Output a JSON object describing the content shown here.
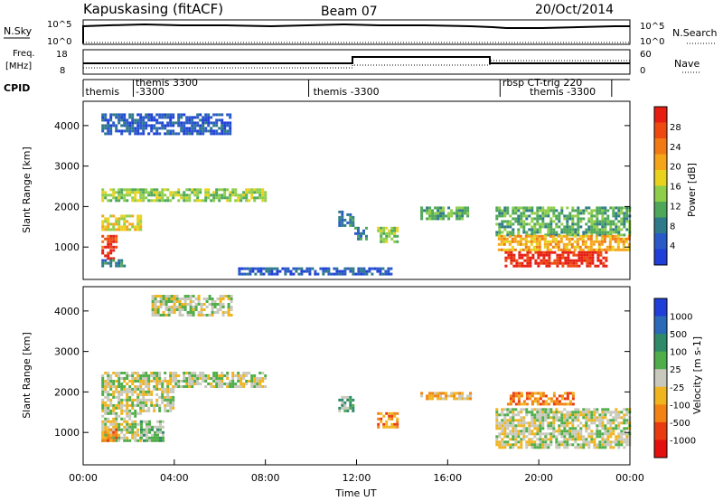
{
  "header": {
    "station": "Kapuskasing (fitACF)",
    "beam": "Beam 07",
    "date": "20/Oct/2014"
  },
  "nsky_panel": {
    "label": "N.Sky",
    "tick_top": "10^5",
    "tick_bottom": "10^0",
    "right_label": "N.Search",
    "right_tick_top": "10^5",
    "right_tick_bottom": "10^0"
  },
  "freq_panel": {
    "label_line1": "Freq.",
    "label_line2": "[MHz]",
    "tick_top": "18",
    "tick_bottom": "8",
    "right_label": "Nave",
    "right_tick_top": "60",
    "right_tick_bottom": "0"
  },
  "cpid_panel": {
    "label": "CPID",
    "entries": [
      {
        "text": "themis",
        "x_hour": 0.1,
        "row": 1
      },
      {
        "text": "themis 3300",
        "x_hour": 2.3,
        "row": 0
      },
      {
        "text": "-3300",
        "x_hour": 2.3,
        "row": 1
      },
      {
        "text": "themis -3300",
        "x_hour": 10.1,
        "row": 1
      },
      {
        "text": "rbsp CT-trig 220",
        "x_hour": 18.4,
        "row": 0
      },
      {
        "text": "themis -3300",
        "x_hour": 19.6,
        "row": 1
      }
    ],
    "boundaries_hours": [
      2.2,
      9.9,
      18.3,
      23.2
    ]
  },
  "chart_data": [
    {
      "type": "heatmap",
      "name": "power",
      "ylabel": "Slant Range [km]",
      "ylim": [
        200,
        4600
      ],
      "yticks": [
        "1000",
        "2000",
        "3000",
        "4000"
      ],
      "colorbar_label": "Power [dB]",
      "colorbar_ticks": [
        "4",
        "8",
        "12",
        "16",
        "20",
        "24",
        "28"
      ],
      "colorbar_colors": [
        "#1f3fd8",
        "#2a5ac8",
        "#2f7a8a",
        "#4fa85a",
        "#8fce4a",
        "#e8d21e",
        "#f5a51a",
        "#f27a14",
        "#ee4a10",
        "#e61e12"
      ],
      "regions": [
        {
          "x0": 0.8,
          "x1": 8.0,
          "y0": 2150,
          "y1": 2450,
          "level": 4
        },
        {
          "x0": 0.8,
          "x1": 6.5,
          "y0": 3800,
          "y1": 4300,
          "level": 1
        },
        {
          "x0": 0.8,
          "x1": 2.5,
          "y0": 1400,
          "y1": 1800,
          "level": 5
        },
        {
          "x0": 0.8,
          "x1": 1.5,
          "y0": 1000,
          "y1": 1300,
          "level": 8
        },
        {
          "x0": 0.8,
          "x1": 1.3,
          "y0": 700,
          "y1": 950,
          "level": 9
        },
        {
          "x0": 0.8,
          "x1": 1.8,
          "y0": 500,
          "y1": 700,
          "level": 2
        },
        {
          "x0": 6.8,
          "x1": 13.5,
          "y0": 300,
          "y1": 500,
          "level": 1
        },
        {
          "x0": 11.2,
          "x1": 11.8,
          "y0": 1500,
          "y1": 1900,
          "level": 2
        },
        {
          "x0": 11.9,
          "x1": 12.4,
          "y0": 1200,
          "y1": 1500,
          "level": 2
        },
        {
          "x0": 12.9,
          "x1": 13.8,
          "y0": 1100,
          "y1": 1500,
          "level": 4
        },
        {
          "x0": 14.8,
          "x1": 17.0,
          "y0": 1700,
          "y1": 2000,
          "level": 3
        },
        {
          "x0": 18.1,
          "x1": 24.0,
          "y0": 1300,
          "y1": 2000,
          "level": 3
        },
        {
          "x0": 18.2,
          "x1": 24.0,
          "y0": 900,
          "y1": 1300,
          "level": 6
        },
        {
          "x0": 18.5,
          "x1": 23.0,
          "y0": 500,
          "y1": 900,
          "level": 9
        }
      ]
    },
    {
      "type": "heatmap",
      "name": "velocity",
      "ylabel": "Slant Range [km]",
      "xlabel": "Time UT",
      "ylim": [
        200,
        4600
      ],
      "xlim": [
        0,
        24
      ],
      "yticks": [
        "1000",
        "2000",
        "3000",
        "4000"
      ],
      "xticks": [
        "00:00",
        "04:00",
        "08:00",
        "12:00",
        "16:00",
        "20:00",
        "00:00"
      ],
      "colorbar_label": "Velocity [m s-1]",
      "colorbar_ticks": [
        "1000",
        "500",
        "100",
        "25",
        "-25",
        "-100",
        "-500",
        "-1000"
      ],
      "colorbar_colors": [
        "#1f3fd8",
        "#2a6ab8",
        "#2f8a6a",
        "#4fae4a",
        "#c8c8bc",
        "#f0b41e",
        "#f28214",
        "#e83c10",
        "#e41010"
      ],
      "regions": [
        {
          "x0": 0.8,
          "x1": 8.0,
          "y0": 2100,
          "y1": 2500,
          "level": 4
        },
        {
          "x0": 0.8,
          "x1": 4.0,
          "y0": 1500,
          "y1": 2100,
          "level": 4
        },
        {
          "x0": 0.8,
          "x1": 2.5,
          "y0": 800,
          "y1": 1500,
          "level": 4
        },
        {
          "x0": 0.8,
          "x1": 1.5,
          "y0": 800,
          "y1": 1100,
          "level": 6
        },
        {
          "x0": 2.5,
          "x1": 3.5,
          "y0": 800,
          "y1": 1300,
          "level": 3
        },
        {
          "x0": 3.0,
          "x1": 6.5,
          "y0": 3900,
          "y1": 4400,
          "level": 4
        },
        {
          "x0": 11.2,
          "x1": 11.8,
          "y0": 1500,
          "y1": 1900,
          "level": 3
        },
        {
          "x0": 12.9,
          "x1": 13.8,
          "y0": 1100,
          "y1": 1500,
          "level": 6
        },
        {
          "x0": 14.8,
          "x1": 17.0,
          "y0": 1800,
          "y1": 2000,
          "level": 5
        },
        {
          "x0": 18.1,
          "x1": 24.0,
          "y0": 600,
          "y1": 1600,
          "level": 4
        },
        {
          "x0": 18.6,
          "x1": 21.5,
          "y0": 1700,
          "y1": 2000,
          "level": 6
        }
      ]
    }
  ]
}
